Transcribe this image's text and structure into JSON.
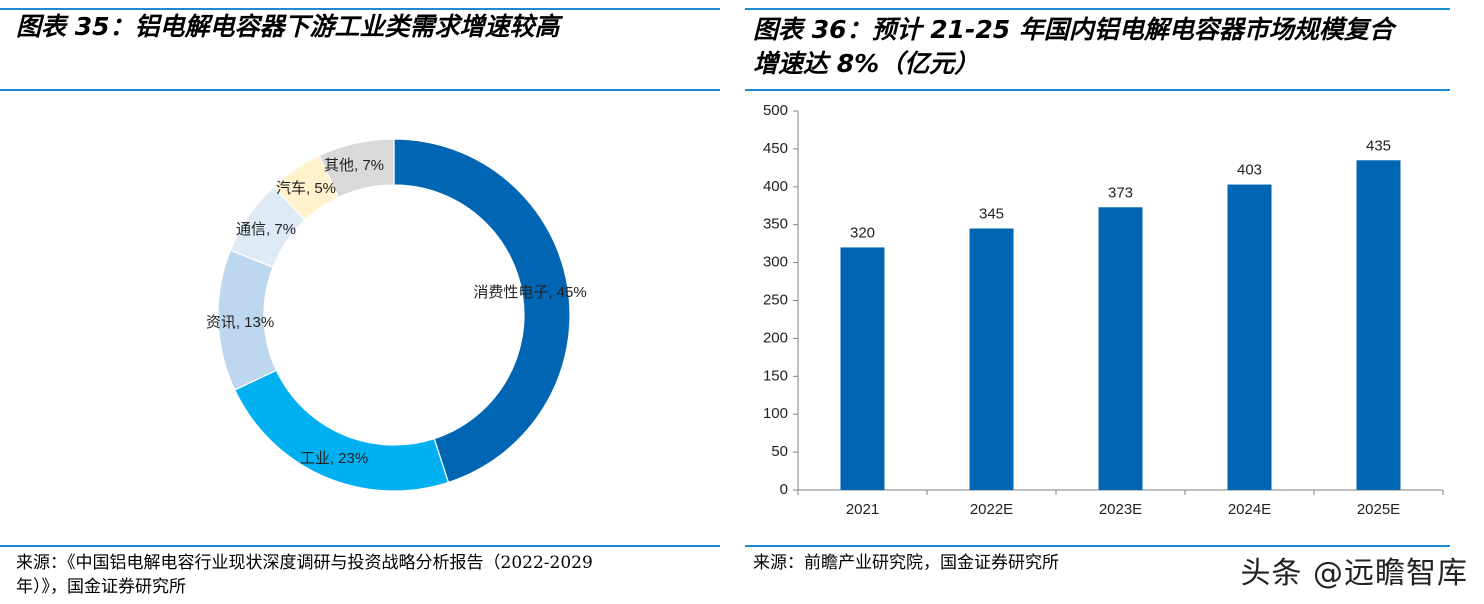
{
  "left": {
    "title": "图表 35：铝电解电容器下游工业类需求增速较高",
    "source_line1": "来源：《中国铝电解电容行业现状深度调研与投资战略分析报告（2022-2029",
    "source_line2": "年）》，国金证券研究所"
  },
  "right": {
    "title_line1": "图表 36：预计 21-25 年国内铝电解电容器市场规模复合",
    "title_line2": "增速达 8%（亿元）",
    "source": "来源：前瞻产业研究院，国金证券研究所"
  },
  "watermark": "头条 @远瞻智库",
  "chart_data": [
    {
      "type": "pie",
      "donut": true,
      "title": "",
      "labels": [
        "消费性电子",
        "工业",
        "资讯",
        "通信",
        "汽车",
        "其他"
      ],
      "values": [
        45,
        23,
        13,
        7,
        5,
        7
      ],
      "unit": "%",
      "data_labels": [
        "消费性电子, 45%",
        "工业, 23%",
        "资讯, 13%",
        "通信, 7%",
        "汽车, 5%",
        "其他, 7%"
      ],
      "colors": [
        "#0066b3",
        "#00b0f0",
        "#bdd7ee",
        "#deebf7",
        "#fff2cc",
        "#d9d9d9"
      ]
    },
    {
      "type": "bar",
      "title": "",
      "categories": [
        "2021",
        "2022E",
        "2023E",
        "2024E",
        "2025E"
      ],
      "values": [
        320,
        345,
        373,
        403,
        435
      ],
      "xlabel": "",
      "ylabel": "",
      "ylim": [
        0,
        500
      ],
      "yticks": [
        0,
        50,
        100,
        150,
        200,
        250,
        300,
        350,
        400,
        450,
        500
      ],
      "bar_color": "#0066b3",
      "grid": false
    }
  ]
}
